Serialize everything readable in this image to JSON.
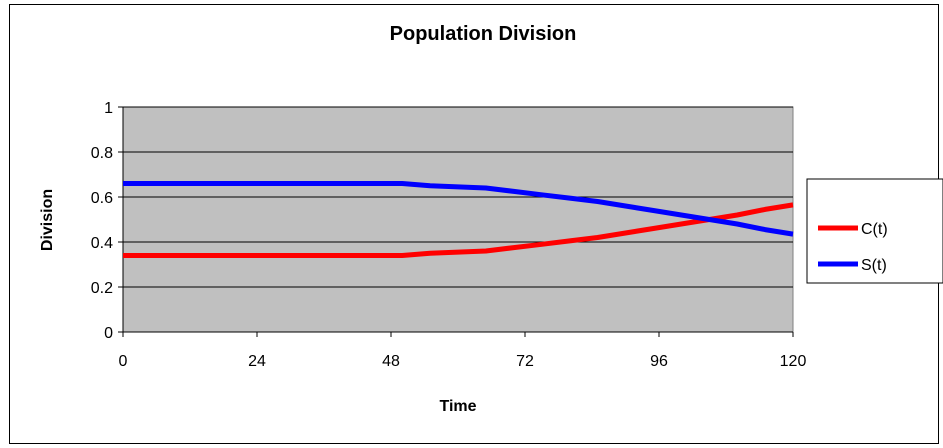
{
  "chart_data": {
    "type": "line",
    "title": "Population Division",
    "xlabel": "Time",
    "ylabel": "Division",
    "xlim": [
      0,
      120
    ],
    "ylim": [
      0,
      1
    ],
    "x_ticks": [
      "0",
      "24",
      "48",
      "72",
      "96",
      "120"
    ],
    "y_ticks": [
      "0",
      "0.2",
      "0.4",
      "0.6",
      "0.8",
      "1"
    ],
    "grid": true,
    "plot_background": "#C0C0C0",
    "legend_position": "right",
    "series": [
      {
        "name": "C(t)",
        "color": "#FF0000",
        "x": [
          0,
          10,
          20,
          30,
          40,
          50,
          55,
          60,
          65,
          70,
          75,
          80,
          85,
          90,
          95,
          100,
          105,
          110,
          115,
          120
        ],
        "y": [
          0.34,
          0.34,
          0.34,
          0.34,
          0.34,
          0.34,
          0.35,
          0.355,
          0.36,
          0.375,
          0.39,
          0.405,
          0.42,
          0.44,
          0.46,
          0.48,
          0.5,
          0.52,
          0.545,
          0.565
        ]
      },
      {
        "name": "S(t)",
        "color": "#0000FF",
        "x": [
          0,
          10,
          20,
          30,
          40,
          50,
          55,
          60,
          65,
          70,
          75,
          80,
          85,
          90,
          95,
          100,
          105,
          110,
          115,
          120
        ],
        "y": [
          0.66,
          0.66,
          0.66,
          0.66,
          0.66,
          0.66,
          0.65,
          0.645,
          0.64,
          0.625,
          0.61,
          0.595,
          0.58,
          0.56,
          0.54,
          0.52,
          0.5,
          0.48,
          0.455,
          0.435
        ]
      }
    ]
  }
}
